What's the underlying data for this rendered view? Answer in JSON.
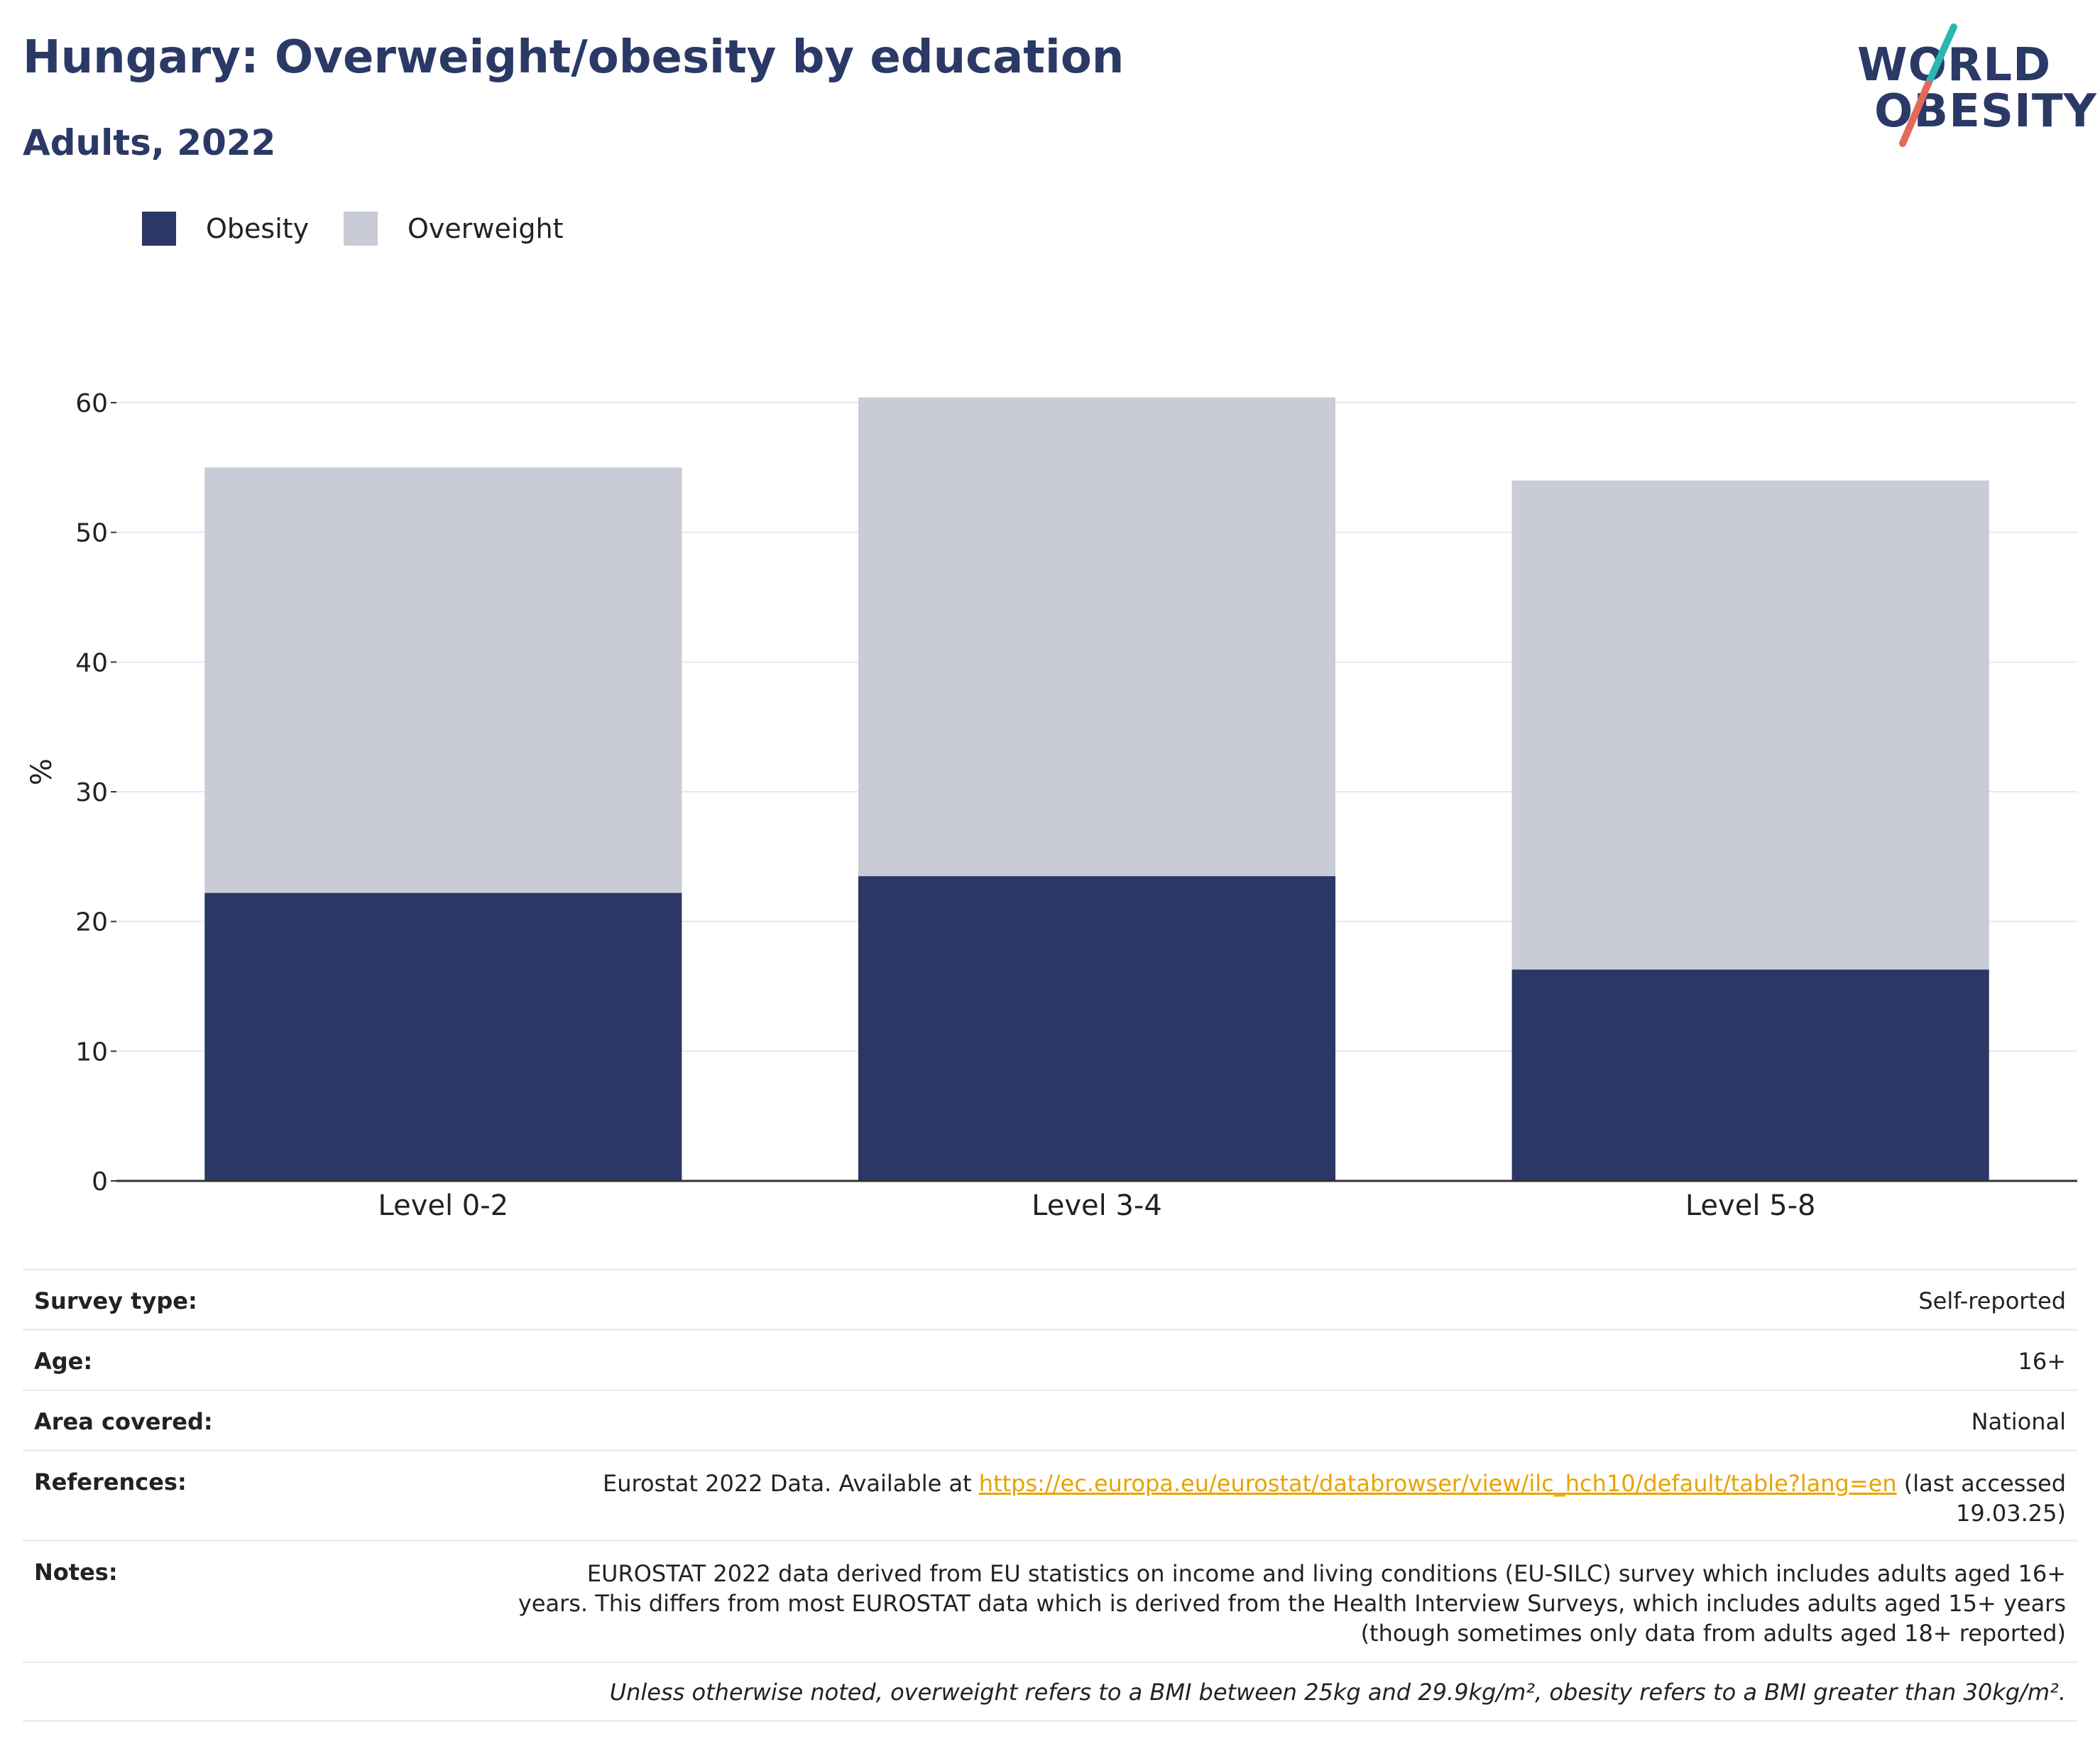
{
  "header": {
    "title": "Hungary: Overweight/obesity by education",
    "subtitle": "Adults, 2022"
  },
  "logo": {
    "line1": "WORLD",
    "line2": "OBESITY",
    "accent_top": "#2ab7b0",
    "accent_bottom": "#e26a5b"
  },
  "legend": [
    {
      "label": "Obesity",
      "color": "#2b3764"
    },
    {
      "label": "Overweight",
      "color": "#c9cbd6"
    }
  ],
  "chart_data": {
    "type": "bar",
    "stacked": true,
    "categories": [
      "Level 0-2",
      "Level 3-4",
      "Level 5-8"
    ],
    "series": [
      {
        "name": "Obesity",
        "color": "#2b3764",
        "values": [
          22.2,
          23.5,
          16.3
        ]
      },
      {
        "name": "Overweight",
        "color": "#c9cbd6",
        "values": [
          32.8,
          36.9,
          37.7
        ]
      }
    ],
    "ylabel": "%",
    "ylim": [
      0,
      60
    ],
    "yticks": [
      0,
      10,
      20,
      30,
      40,
      50,
      60
    ],
    "grid": true,
    "legend_position": "top-left"
  },
  "info": {
    "survey_type": {
      "label": "Survey type:",
      "value": "Self-reported"
    },
    "age": {
      "label": "Age:",
      "value": "16+"
    },
    "area": {
      "label": "Area covered:",
      "value": "National"
    },
    "references": {
      "label": "References:",
      "prefix": "Eurostat 2022 Data. Available at ",
      "link": "https://ec.europa.eu/eurostat/databrowser/view/ilc_hch10/default/table?lang=en",
      "suffix_line1": " (last accessed",
      "suffix_line2": "19.03.25)"
    },
    "notes": {
      "label": "Notes:",
      "line1": "EUROSTAT 2022 data derived from EU statistics on income and living conditions (EU-SILC) survey which includes adults aged 16+",
      "line2": "years. This differs from most EUROSTAT data which is derived from the Health Interview Surveys, which includes adults aged 15+ years",
      "line3": "(though sometimes only data from adults aged 18+ reported)"
    },
    "footnote": "Unless otherwise noted, overweight refers to a BMI between 25kg and 29.9kg/m², obesity refers to a BMI greater than 30kg/m²."
  }
}
